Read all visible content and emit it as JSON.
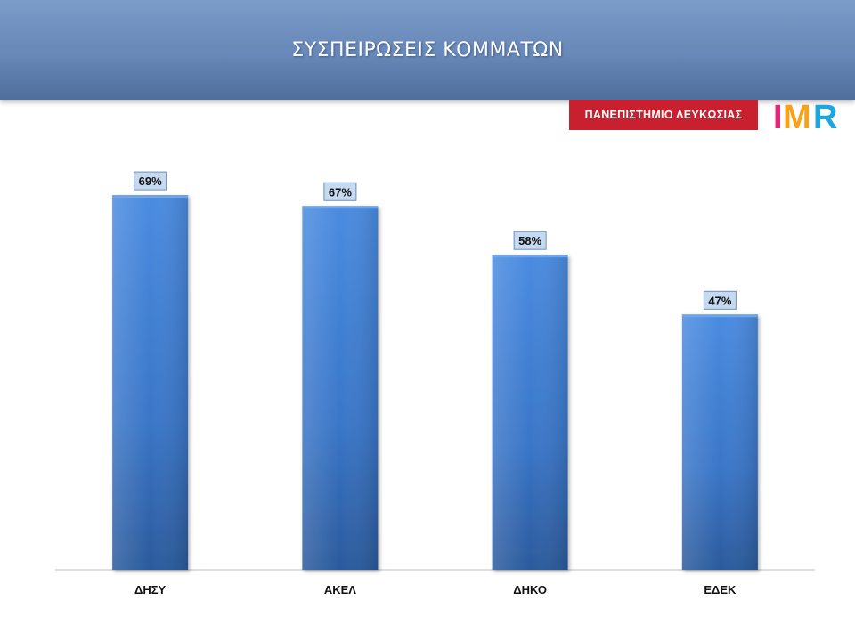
{
  "header": {
    "title": "ΣΥΣΠΕΙΡΩΣΕΙΣ ΚΟΜΜΑΤΩΝ"
  },
  "badges": {
    "university": "ΠΑΝΕΠΙΣΤΗΜΙΟ ΛΕΥΚΩΣΙΑΣ",
    "logo_text": "IMR"
  },
  "colors": {
    "bar": "#3f7fd6",
    "bar_dark": "#2a5ea8",
    "header": "#6788b8",
    "badge": "#c8202e"
  },
  "chart_data": {
    "type": "bar",
    "title": "ΣΥΣΠΕΙΡΩΣΕΙΣ ΚΟΜΜΑΤΩΝ",
    "categories": [
      "ΔΗΣΥ",
      "ΑΚΕΛ",
      "ΔΗΚΟ",
      "ΕΔΕΚ"
    ],
    "values": [
      69,
      67,
      58,
      47
    ],
    "value_labels": [
      "69%",
      "67%",
      "58%",
      "47%"
    ],
    "unit": "%",
    "ylim": [
      0,
      80
    ],
    "grid": false,
    "legend": "none"
  }
}
